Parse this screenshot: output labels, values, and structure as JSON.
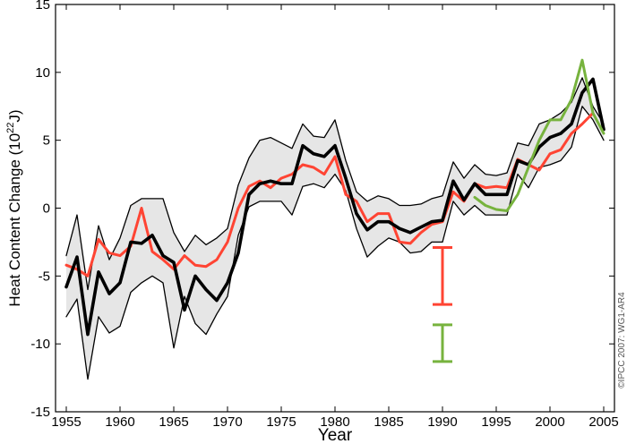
{
  "chart_data": {
    "type": "line",
    "xlabel": "Year",
    "ylabel_main": "Heat Content Change (10",
    "ylabel_exp": "22",
    "ylabel_tail": "J)",
    "credit": "©IPCC 2007: WG1-AR4",
    "xlim": [
      1954,
      2006
    ],
    "ylim": [
      -15,
      15
    ],
    "x_ticks": [
      1955,
      1960,
      1965,
      1970,
      1975,
      1980,
      1985,
      1990,
      1995,
      2000,
      2005
    ],
    "y_ticks": [
      -15,
      -10,
      -5,
      0,
      5,
      10,
      15
    ],
    "grid": false,
    "series": [
      {
        "key": "upper",
        "color": "#000000",
        "x": [
          1955,
          1956,
          1957,
          1958,
          1959,
          1960,
          1961,
          1962,
          1963,
          1964,
          1965,
          1966,
          1967,
          1968,
          1969,
          1970,
          1971,
          1972,
          1973,
          1974,
          1975,
          1976,
          1977,
          1978,
          1979,
          1980,
          1981,
          1982,
          1983,
          1984,
          1985,
          1986,
          1987,
          1988,
          1989,
          1990,
          1991,
          1992,
          1993,
          1994,
          1995,
          1996,
          1997,
          1998,
          1999,
          2000,
          2001,
          2002,
          2003,
          2004,
          2005
        ],
        "y": [
          -3.5,
          -0.5,
          -6,
          -1.3,
          -3.8,
          -2.2,
          0.2,
          0.7,
          0.7,
          0.7,
          -1.8,
          -3.2,
          -2.0,
          -2.7,
          -2.2,
          -1.5,
          1.7,
          3.7,
          5.0,
          5.2,
          4.8,
          4.4,
          6.2,
          5.3,
          5.2,
          6.5,
          3.5,
          1.2,
          0.5,
          0.9,
          0.7,
          0.2,
          0.2,
          0.3,
          0.7,
          0.9,
          3.4,
          2.2,
          3.2,
          2.5,
          2.4,
          2.6,
          4.8,
          4.6,
          6.2,
          6.5,
          7.0,
          7.8,
          9.6,
          7.5,
          6.2
        ]
      },
      {
        "key": "lower",
        "color": "#000000",
        "x": [
          1955,
          1956,
          1957,
          1958,
          1959,
          1960,
          1961,
          1962,
          1963,
          1964,
          1965,
          1966,
          1967,
          1968,
          1969,
          1970,
          1971,
          1972,
          1973,
          1974,
          1975,
          1976,
          1977,
          1978,
          1979,
          1980,
          1981,
          1982,
          1983,
          1984,
          1985,
          1986,
          1987,
          1988,
          1989,
          1990,
          1991,
          1992,
          1993,
          1994,
          1995,
          1996,
          1997,
          1998,
          1999,
          2000,
          2001,
          2002,
          2003,
          2004,
          2005
        ],
        "y": [
          -8.0,
          -6.7,
          -12.6,
          -8.0,
          -9.2,
          -8.7,
          -6.2,
          -5.5,
          -5.0,
          -5.5,
          -10.3,
          -6.5,
          -8.5,
          -9.3,
          -7.8,
          -6.5,
          -2.0,
          0.1,
          0.5,
          0.5,
          0.5,
          -0.5,
          1.6,
          1.8,
          1.5,
          2.5,
          1.3,
          -1.5,
          -3.6,
          -2.8,
          -2.2,
          -2.5,
          -3.3,
          -3.2,
          -2.5,
          -2.5,
          0.5,
          -0.5,
          0.2,
          -0.5,
          -0.5,
          -0.5,
          2.5,
          1.5,
          3.0,
          3.2,
          3.5,
          4.5,
          7.5,
          6.5,
          5.0
        ]
      },
      {
        "key": "black",
        "color": "#000000",
        "x": [
          1955,
          1956,
          1957,
          1958,
          1959,
          1960,
          1961,
          1962,
          1963,
          1964,
          1965,
          1966,
          1967,
          1968,
          1969,
          1970,
          1971,
          1972,
          1973,
          1974,
          1975,
          1976,
          1977,
          1978,
          1979,
          1980,
          1981,
          1982,
          1983,
          1984,
          1985,
          1986,
          1987,
          1988,
          1989,
          1990,
          1991,
          1992,
          1993,
          1994,
          1995,
          1996,
          1997,
          1998,
          1999,
          2000,
          2001,
          2002,
          2003,
          2004,
          2005
        ],
        "y": [
          -5.8,
          -3.6,
          -9.3,
          -4.7,
          -6.3,
          -5.5,
          -2.5,
          -2.6,
          -2.0,
          -3.5,
          -4.0,
          -7.5,
          -5.0,
          -6.0,
          -6.8,
          -5.5,
          -3.3,
          1.0,
          1.8,
          2.0,
          1.8,
          1.8,
          4.6,
          4.0,
          3.8,
          4.6,
          2.2,
          -0.4,
          -1.6,
          -1.0,
          -1.0,
          -1.5,
          -1.8,
          -1.4,
          -1.0,
          -0.9,
          2.0,
          0.6,
          1.8,
          1.0,
          1.0,
          1.0,
          3.5,
          3.2,
          4.5,
          5.2,
          5.5,
          6.2,
          8.5,
          9.5,
          5.8
        ]
      },
      {
        "key": "red",
        "color": "#ff4433",
        "x": [
          1955,
          1956,
          1957,
          1958,
          1959,
          1960,
          1961,
          1962,
          1963,
          1964,
          1965,
          1966,
          1967,
          1968,
          1969,
          1970,
          1971,
          1972,
          1973,
          1974,
          1975,
          1976,
          1977,
          1978,
          1979,
          1980,
          1981,
          1982,
          1983,
          1984,
          1985,
          1986,
          1987,
          1988,
          1989,
          1990,
          1991,
          1992,
          1993,
          1994,
          1995,
          1996,
          1997,
          1998,
          1999,
          2000,
          2001,
          2002,
          2003,
          2004
        ],
        "y": [
          -4.2,
          -4.5,
          -5.0,
          -2.3,
          -3.3,
          -3.5,
          -2.8,
          0.0,
          -3.2,
          -3.8,
          -4.5,
          -3.5,
          -4.2,
          -4.3,
          -3.8,
          -2.5,
          0.0,
          1.6,
          2.0,
          1.5,
          2.2,
          2.5,
          3.2,
          3.0,
          2.5,
          3.8,
          1.0,
          0.5,
          -1.0,
          -0.4,
          -0.4,
          -2.5,
          -2.6,
          -1.8,
          -1.2,
          -1.0,
          1.2,
          0.5,
          1.8,
          1.5,
          1.6,
          1.5,
          3.6,
          3.2,
          2.8,
          4.0,
          4.3,
          5.5,
          6.2,
          7.0
        ]
      },
      {
        "key": "green",
        "color": "#77b33e",
        "x": [
          1993,
          1994,
          1995,
          1996,
          1997,
          1998,
          1999,
          2000,
          2001,
          2002,
          2003,
          2004,
          2005
        ],
        "y": [
          0.8,
          0.2,
          -0.1,
          -0.2,
          1.0,
          3.0,
          5.0,
          6.5,
          6.5,
          8.0,
          10.9,
          7.0,
          5.5
        ]
      }
    ],
    "error_bars": [
      {
        "key": "red",
        "color": "#ff4433",
        "x": 1990,
        "low": -7.1,
        "high": -2.9
      },
      {
        "key": "green",
        "color": "#77b33e",
        "x": 1990,
        "low": -11.3,
        "high": -8.6
      }
    ]
  }
}
